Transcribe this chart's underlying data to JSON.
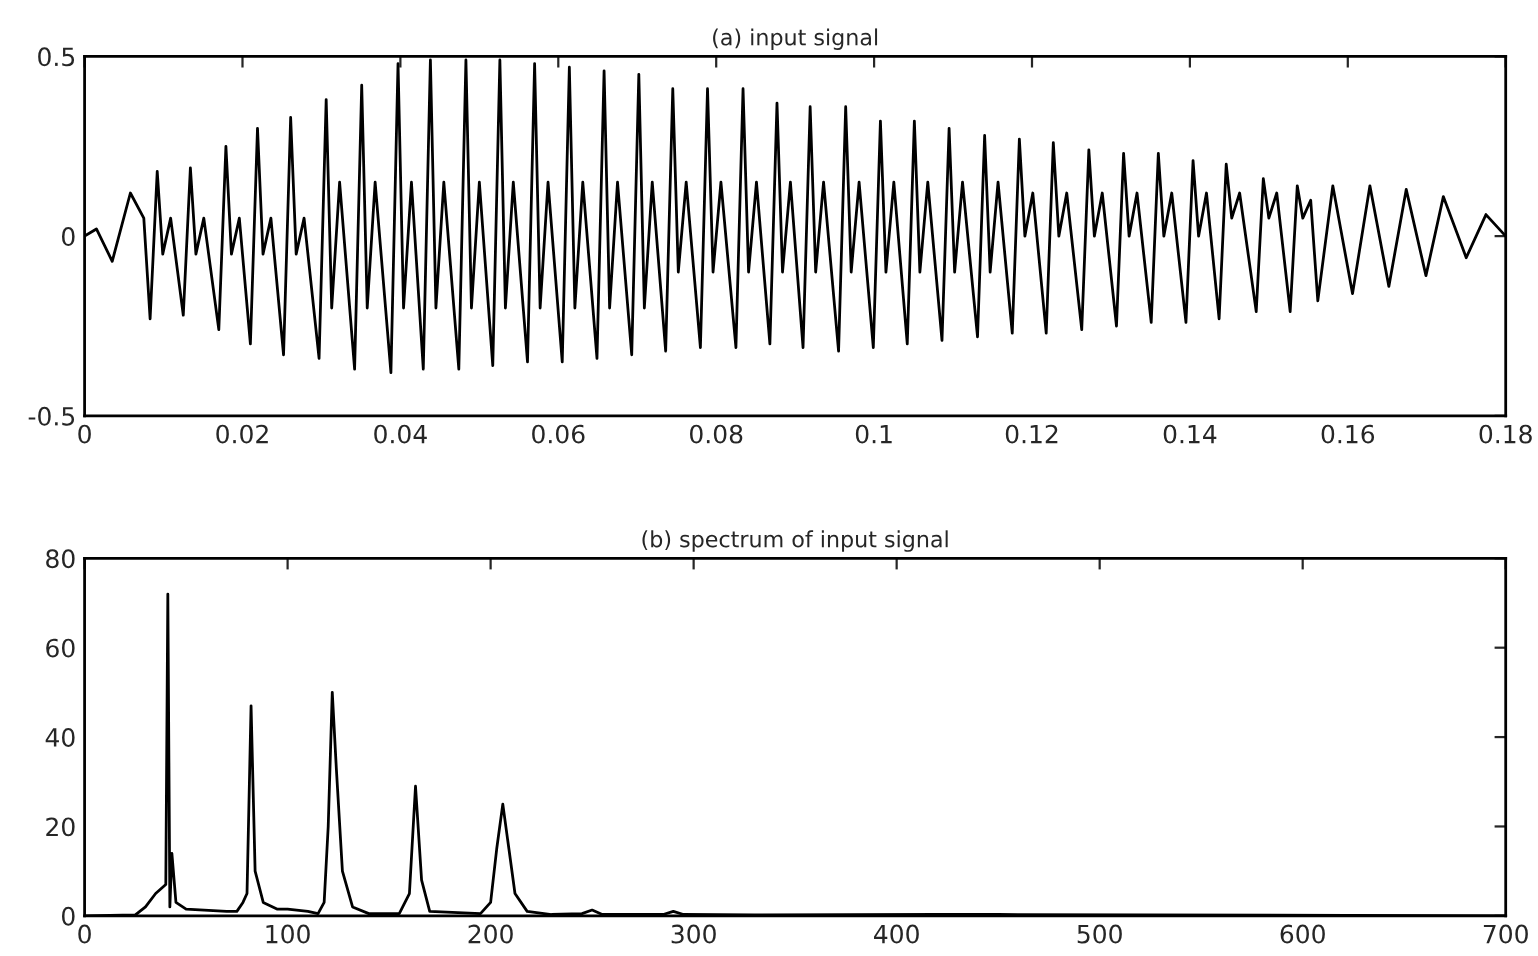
{
  "chart_data": [
    {
      "type": "line",
      "title": "(a) input signal",
      "color": "#000000",
      "xlim": [
        0,
        0.18
      ],
      "ylim": [
        -0.5,
        0.5
      ],
      "xticks": [
        0,
        0.02,
        0.04,
        0.06,
        0.08,
        0.1,
        0.12,
        0.14,
        0.16,
        0.18
      ],
      "yticks": [
        -0.5,
        0,
        0.5
      ],
      "x": [
        0,
        0.0015,
        0.0035,
        0.0058,
        0.0075,
        0.0083,
        0.0092,
        0.0099,
        0.0109,
        0.0125,
        0.0134,
        0.0141,
        0.0151,
        0.017,
        0.0179,
        0.0186,
        0.0196,
        0.021,
        0.0219,
        0.0226,
        0.0236,
        0.0252,
        0.0261,
        0.0268,
        0.0278,
        0.0297,
        0.0306,
        0.0313,
        0.0323,
        0.0342,
        0.0351,
        0.0358,
        0.0368,
        0.0388,
        0.0397,
        0.0404,
        0.0414,
        0.0429,
        0.0438,
        0.0445,
        0.0455,
        0.0474,
        0.0483,
        0.049,
        0.05,
        0.0517,
        0.0526,
        0.0533,
        0.0543,
        0.0561,
        0.057,
        0.0577,
        0.0587,
        0.0605,
        0.0614,
        0.0621,
        0.0631,
        0.0649,
        0.0658,
        0.0665,
        0.0675,
        0.0693,
        0.0702,
        0.0709,
        0.0719,
        0.0736,
        0.0745,
        0.0752,
        0.0762,
        0.078,
        0.0789,
        0.0796,
        0.0806,
        0.0825,
        0.0834,
        0.0841,
        0.0851,
        0.0868,
        0.0877,
        0.0884,
        0.0894,
        0.091,
        0.0919,
        0.0926,
        0.0936,
        0.0955,
        0.0964,
        0.0971,
        0.0981,
        0.0999,
        0.1008,
        0.1015,
        0.1025,
        0.1042,
        0.1051,
        0.1058,
        0.1068,
        0.1086,
        0.1095,
        0.1102,
        0.1112,
        0.1131,
        0.114,
        0.1147,
        0.1157,
        0.1175,
        0.1184,
        0.1191,
        0.1201,
        0.1218,
        0.1227,
        0.1234,
        0.1244,
        0.1263,
        0.1272,
        0.1279,
        0.1289,
        0.1307,
        0.1316,
        0.1323,
        0.1333,
        0.1351,
        0.136,
        0.1367,
        0.1377,
        0.1395,
        0.1404,
        0.1411,
        0.1421,
        0.1437,
        0.1446,
        0.1453,
        0.1463,
        0.1484,
        0.1493,
        0.15,
        0.151,
        0.1527,
        0.1536,
        0.1543,
        0.1553,
        0.1562,
        0.1581,
        0.1606,
        0.1628,
        0.1652,
        0.1674,
        0.1699,
        0.1721,
        0.175,
        0.1775,
        0.18
      ],
      "values": [
        0,
        0.02,
        -0.07,
        0.12,
        0.05,
        -0.23,
        0.18,
        -0.05,
        0.05,
        -0.22,
        0.19,
        -0.05,
        0.05,
        -0.26,
        0.25,
        -0.05,
        0.05,
        -0.3,
        0.3,
        -0.05,
        0.05,
        -0.33,
        0.33,
        -0.05,
        0.05,
        -0.34,
        0.38,
        -0.2,
        0.15,
        -0.37,
        0.42,
        -0.2,
        0.15,
        -0.38,
        0.48,
        -0.2,
        0.15,
        -0.37,
        0.49,
        -0.2,
        0.15,
        -0.37,
        0.49,
        -0.2,
        0.15,
        -0.36,
        0.49,
        -0.2,
        0.15,
        -0.35,
        0.48,
        -0.2,
        0.15,
        -0.35,
        0.47,
        -0.2,
        0.15,
        -0.34,
        0.46,
        -0.2,
        0.15,
        -0.33,
        0.45,
        -0.2,
        0.15,
        -0.32,
        0.41,
        -0.1,
        0.15,
        -0.31,
        0.41,
        -0.1,
        0.15,
        -0.31,
        0.41,
        -0.1,
        0.15,
        -0.3,
        0.37,
        -0.1,
        0.15,
        -0.31,
        0.36,
        -0.1,
        0.15,
        -0.32,
        0.36,
        -0.1,
        0.15,
        -0.31,
        0.32,
        -0.1,
        0.15,
        -0.3,
        0.32,
        -0.1,
        0.15,
        -0.29,
        0.3,
        -0.1,
        0.15,
        -0.28,
        0.28,
        -0.1,
        0.15,
        -0.27,
        0.27,
        0.0,
        0.12,
        -0.27,
        0.26,
        0.0,
        0.12,
        -0.26,
        0.24,
        0.0,
        0.12,
        -0.25,
        0.23,
        0.0,
        0.12,
        -0.24,
        0.23,
        0.0,
        0.12,
        -0.24,
        0.21,
        0.0,
        0.12,
        -0.23,
        0.2,
        0.05,
        0.12,
        -0.21,
        0.16,
        0.05,
        0.12,
        -0.21,
        0.14,
        0.05,
        0.1,
        -0.18,
        0.14,
        -0.16,
        0.14,
        -0.14,
        0.13,
        -0.11,
        0.11,
        -0.06,
        0.06,
        0
      ]
    },
    {
      "type": "line",
      "title": "(b) spectrum of input signal",
      "color": "#000000",
      "xlim": [
        0,
        700
      ],
      "ylim": [
        0,
        80
      ],
      "xticks": [
        0,
        100,
        200,
        300,
        400,
        500,
        600,
        700
      ],
      "yticks": [
        0,
        20,
        40,
        60,
        80
      ],
      "x": [
        0,
        25,
        30,
        35,
        40,
        41,
        42,
        43,
        45,
        50,
        70,
        75,
        78,
        80,
        82,
        84,
        88,
        95,
        100,
        110,
        115,
        118,
        120,
        122,
        124,
        127,
        132,
        140,
        155,
        160,
        163,
        166,
        170,
        195,
        200,
        203,
        206,
        209,
        212,
        218,
        230,
        245,
        250,
        255,
        285,
        290,
        295,
        330,
        420,
        450,
        700
      ],
      "values": [
        0,
        0.2,
        2,
        5,
        7,
        72,
        2,
        14,
        3,
        1.5,
        1,
        1,
        3,
        5,
        47,
        10,
        3,
        1.5,
        1.5,
        1,
        0.5,
        3,
        20,
        50,
        33,
        10,
        2,
        0.5,
        0.5,
        5,
        29,
        8,
        1,
        0.5,
        3,
        15,
        25,
        15,
        5,
        1,
        0.3,
        0.5,
        1.3,
        0.3,
        0.3,
        1,
        0.3,
        0.2,
        0.3,
        0.3,
        0
      ]
    }
  ]
}
